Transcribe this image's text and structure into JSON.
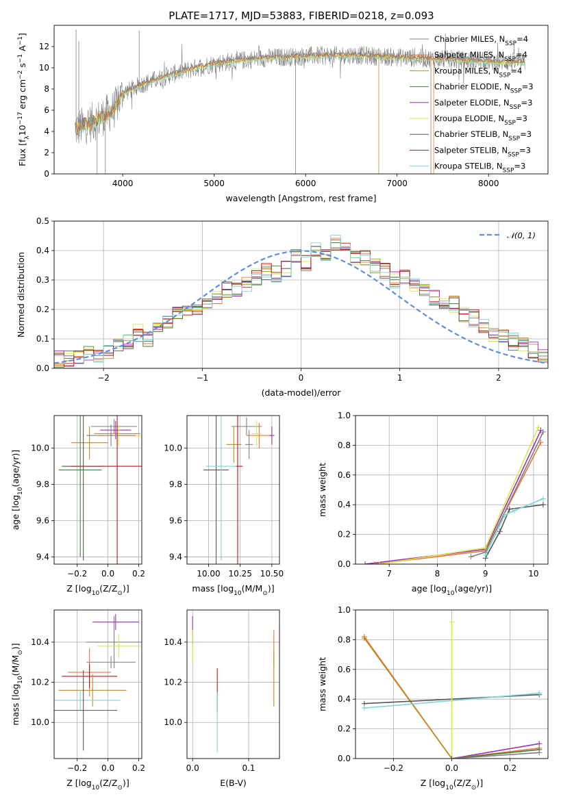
{
  "title": "PLATE=1717, MJD=53883, FIBERID=0218, z=0.093",
  "colors": {
    "series": [
      "#7f7f7f",
      "#e8773a",
      "#b98d1f",
      "#3f7f3f",
      "#9b2fb5",
      "#d9e64a",
      "#555555",
      "#b0171f",
      "#7fd4d6"
    ],
    "model_gray": "#808080",
    "normal_curve": "#5b8fdd",
    "gaussian": "#5b8fdd"
  },
  "legend_items": [
    {
      "prefix": "Chabrier MILES, N",
      "sub": "SSP",
      "suffix": "=4"
    },
    {
      "prefix": "Salpeter MILES, N",
      "sub": "SSP",
      "suffix": "=4"
    },
    {
      "prefix": "Kroupa MILES, N",
      "sub": "SSP",
      "suffix": "=4"
    },
    {
      "prefix": "Chabrier ELODIE, N",
      "sub": "SSP",
      "suffix": "=3"
    },
    {
      "prefix": "Salpeter ELODIE, N",
      "sub": "SSP",
      "suffix": "=3"
    },
    {
      "prefix": "Kroupa ELODIE, N",
      "sub": "SSP",
      "suffix": "=3"
    },
    {
      "prefix": "Chabrier STELIB, N",
      "sub": "SSP",
      "suffix": "=3"
    },
    {
      "prefix": "Salpeter STELIB, N",
      "sub": "SSP",
      "suffix": "=3"
    },
    {
      "prefix": "Kroupa STELIB, N",
      "sub": "SSP",
      "suffix": "=3"
    }
  ],
  "chart_data": [
    {
      "id": "spectrum",
      "type": "line",
      "title": "PLATE=1717, MJD=53883, FIBERID=0218, z=0.093",
      "xlabel": "wavelength [Angstrom, rest frame]",
      "ylabel_parts": [
        "Flux [f",
        "λ",
        "10",
        "−17",
        " erg cm",
        "−2",
        " s",
        "−1",
        " A",
        "−1",
        "]"
      ],
      "xlim": [
        3250,
        8650
      ],
      "ylim": [
        0,
        14
      ],
      "xticks": [
        4000,
        5000,
        6000,
        7000,
        8000
      ],
      "yticks": [
        0,
        2,
        4,
        6,
        8,
        10,
        12
      ],
      "continuum_x": [
        3480,
        3700,
        3900,
        4000,
        4200,
        4500,
        4800,
        5000,
        5500,
        6000,
        6500,
        7000,
        7500,
        8000,
        8400
      ],
      "continuum_y": [
        4.2,
        5.0,
        6.0,
        7.6,
        8.4,
        9.3,
        10.0,
        10.4,
        10.9,
        11.1,
        11.2,
        11.0,
        10.8,
        10.6,
        10.5
      ],
      "grid": false
    },
    {
      "id": "residuals",
      "type": "line",
      "xlabel": "(data-model)/error",
      "ylabel": "Normed distribution",
      "xlim": [
        -2.5,
        2.5
      ],
      "ylim": [
        0,
        0.5
      ],
      "xticks": [
        -2,
        -1,
        0,
        1,
        2
      ],
      "yticks": [
        0.0,
        0.1,
        0.2,
        0.3,
        0.4,
        0.5
      ],
      "legend": "𝒩(0, 1)",
      "bin_edges_start": -2.5,
      "bin_width": 0.1,
      "histogram_profile": [
        0.03,
        0.03,
        0.04,
        0.05,
        0.05,
        0.06,
        0.07,
        0.09,
        0.12,
        0.1,
        0.14,
        0.16,
        0.18,
        0.2,
        0.19,
        0.22,
        0.24,
        0.27,
        0.26,
        0.29,
        0.31,
        0.33,
        0.32,
        0.34,
        0.38,
        0.36,
        0.4,
        0.39,
        0.43,
        0.41,
        0.38,
        0.37,
        0.35,
        0.33,
        0.3,
        0.31,
        0.28,
        0.27,
        0.24,
        0.22,
        0.22,
        0.18,
        0.17,
        0.15,
        0.12,
        0.11,
        0.09,
        0.08,
        0.06,
        0.05
      ],
      "grid": true
    },
    {
      "id": "age-vs-Z",
      "type": "scatter",
      "xlabel_parts": [
        "Z [log",
        "10",
        "(Z/Z",
        "⊙",
        ")]"
      ],
      "ylabel_parts": [
        "age  [log",
        "10",
        "(age/yr)]"
      ],
      "xlim": [
        -0.35,
        0.22
      ],
      "ylim": [
        9.36,
        10.18
      ],
      "xticks": [
        -0.2,
        0.0,
        0.2
      ],
      "xtick_labels": [
        "−0.2",
        "0.0",
        "0.2"
      ],
      "yticks": [
        9.4,
        9.6,
        9.8,
        10.0
      ],
      "points": [
        {
          "x": 0.04,
          "y": 10.12,
          "xerr": 0.15,
          "yerr": 0.04,
          "c": 0
        },
        {
          "x": 0.06,
          "y": 10.08,
          "xerr": 0.15,
          "yerr": 0.06,
          "c": 1
        },
        {
          "x": 0.05,
          "y": 10.1,
          "xerr": 0.1,
          "yerr": 0.05,
          "c": 4
        },
        {
          "x": 0.07,
          "y": 10.07,
          "xerr": 0.14,
          "yerr": 0.06,
          "c": 5
        },
        {
          "x": -0.12,
          "y": 10.03,
          "xerr": 0.12,
          "yerr": 0.09,
          "c": 2
        },
        {
          "x": -0.16,
          "y": 9.9,
          "xerr": 0.14,
          "yerr": 0.52,
          "c": 6
        },
        {
          "x": 0.06,
          "y": 9.9,
          "xerr": 0.3,
          "yerr": 0.55,
          "c": 7
        },
        {
          "x": -0.18,
          "y": 9.88,
          "xerr": 0.14,
          "yerr": 0.48,
          "c": 3
        },
        {
          "x": 0.02,
          "y": 10.07,
          "xerr": 0.16,
          "yerr": 0.06,
          "c": 0
        }
      ],
      "grid": true
    },
    {
      "id": "age-vs-mass",
      "type": "scatter",
      "xlabel_parts": [
        "mass [log",
        "10",
        "(M/M",
        "⊙",
        ")]"
      ],
      "xlim": [
        9.83,
        10.56
      ],
      "ylim": [
        9.36,
        10.18
      ],
      "xticks": [
        10.0,
        10.25,
        10.5
      ],
      "xtick_labels": [
        "10.00",
        "10.25",
        "10.50"
      ],
      "yticks": [
        9.4,
        9.6,
        9.8,
        10.0
      ],
      "points": [
        {
          "x": 10.3,
          "y": 10.12,
          "xerr": 0.12,
          "yerr": 0.05,
          "c": 0
        },
        {
          "x": 10.4,
          "y": 10.07,
          "xerr": 0.1,
          "yerr": 0.07,
          "c": 1
        },
        {
          "x": 10.5,
          "y": 10.07,
          "xerr": 0.02,
          "yerr": 0.05,
          "c": 4
        },
        {
          "x": 10.38,
          "y": 10.08,
          "xerr": 0.04,
          "yerr": 0.07,
          "c": 5
        },
        {
          "x": 10.2,
          "y": 10.02,
          "xerr": 0.06,
          "yerr": 0.1,
          "c": 2
        },
        {
          "x": 10.06,
          "y": 9.88,
          "xerr": 0.1,
          "yerr": 0.52,
          "c": 6
        },
        {
          "x": 10.23,
          "y": 9.9,
          "xerr": 0.04,
          "yerr": 0.55,
          "c": 7
        },
        {
          "x": 10.1,
          "y": 9.9,
          "xerr": 0.12,
          "yerr": 0.52,
          "c": 8
        },
        {
          "x": 10.32,
          "y": 10.02,
          "xerr": 0.03,
          "yerr": 0.08,
          "c": 0
        }
      ],
      "grid": true
    },
    {
      "id": "massweight-vs-age",
      "type": "line",
      "xlabel_parts": [
        "age  [log",
        "10",
        "(age/yr)]"
      ],
      "ylabel": "mass weight",
      "xlim": [
        6.3,
        10.3
      ],
      "ylim": [
        0,
        1.0
      ],
      "xticks": [
        7,
        8,
        9,
        10
      ],
      "yticks": [
        0.0,
        0.2,
        0.4,
        0.6,
        0.8,
        1.0
      ],
      "series": [
        {
          "c": 4,
          "x": [
            6.5,
            9.0,
            10.15
          ],
          "y": [
            0.0,
            0.1,
            0.9
          ]
        },
        {
          "c": 1,
          "x": [
            6.7,
            9.0,
            10.15
          ],
          "y": [
            0.0,
            0.09,
            0.82
          ]
        },
        {
          "c": 5,
          "x": [
            6.8,
            9.0,
            10.1
          ],
          "y": [
            0.0,
            0.11,
            0.92
          ]
        },
        {
          "c": 0,
          "x": [
            8.7,
            9.0,
            10.2
          ],
          "y": [
            0.05,
            0.08,
            0.89
          ]
        },
        {
          "c": 6,
          "x": [
            9.0,
            9.3,
            9.5,
            10.2
          ],
          "y": [
            0.04,
            0.22,
            0.37,
            0.4
          ]
        },
        {
          "c": 8,
          "x": [
            9.0,
            9.4,
            9.6,
            10.2
          ],
          "y": [
            0.06,
            0.33,
            0.36,
            0.44
          ]
        }
      ],
      "grid": true
    },
    {
      "id": "mass-vs-Z",
      "type": "scatter",
      "xlabel_parts": [
        "Z [log",
        "10",
        "(Z/Z",
        "⊙",
        ")]"
      ],
      "ylabel_parts": [
        "mass [log",
        "10",
        "(M/M",
        "⊙",
        ")]"
      ],
      "xlim": [
        -0.35,
        0.22
      ],
      "ylim": [
        9.82,
        10.56
      ],
      "xticks": [
        -0.2,
        0.0,
        0.2
      ],
      "xtick_labels": [
        "−0.2",
        "0.0",
        "0.2"
      ],
      "yticks": [
        10.0,
        10.2,
        10.4
      ],
      "points": [
        {
          "x": 0.05,
          "y": 10.5,
          "xerr": 0.15,
          "yerr": 0.04,
          "c": 4
        },
        {
          "x": 0.04,
          "y": 10.4,
          "xerr": 0.18,
          "yerr": 0.13,
          "c": 0
        },
        {
          "x": 0.07,
          "y": 10.38,
          "xerr": 0.14,
          "yerr": 0.06,
          "c": 5
        },
        {
          "x": 0.02,
          "y": 10.3,
          "xerr": 0.16,
          "yerr": 0.03,
          "c": 0
        },
        {
          "x": -0.12,
          "y": 10.25,
          "xerr": 0.14,
          "yerr": 0.12,
          "c": 1
        },
        {
          "x": -0.12,
          "y": 10.23,
          "xerr": 0.18,
          "yerr": 0.06,
          "c": 7
        },
        {
          "x": -0.1,
          "y": 10.16,
          "xerr": 0.22,
          "yerr": 0.08,
          "c": 2
        },
        {
          "x": -0.18,
          "y": 10.11,
          "xerr": 0.26,
          "yerr": 0.05,
          "c": 8
        },
        {
          "x": -0.16,
          "y": 10.06,
          "xerr": 0.22,
          "yerr": 0.2,
          "c": 6
        }
      ],
      "grid": true
    },
    {
      "id": "mass-vs-EBV",
      "type": "scatter",
      "xlabel": "E(B-V)",
      "xlim": [
        -0.01,
        0.155
      ],
      "ylim": [
        9.82,
        10.56
      ],
      "xticks": [
        0.0,
        0.1
      ],
      "xtick_labels": [
        "0.0",
        "0.1"
      ],
      "yticks": [
        10.0,
        10.2,
        10.4
      ],
      "points": [
        {
          "x": 0.0,
          "y": 10.46,
          "xerr": 0,
          "yerr": 0.07,
          "c": 4
        },
        {
          "x": 0.0,
          "y": 10.38,
          "xerr": 0,
          "yerr": 0.08,
          "c": 5
        },
        {
          "x": 0.044,
          "y": 10.16,
          "xerr": 0,
          "yerr": 0.11,
          "c": 7
        },
        {
          "x": 0.044,
          "y": 10.0,
          "xerr": 0,
          "yerr": 0.15,
          "c": 8
        },
        {
          "x": 0.145,
          "y": 10.37,
          "xerr": 0,
          "yerr": 0.09,
          "c": 1
        },
        {
          "x": 0.145,
          "y": 10.22,
          "xerr": 0,
          "yerr": 0.14,
          "c": 2
        }
      ],
      "grid": true
    },
    {
      "id": "massweight-vs-Z",
      "type": "line",
      "xlabel_parts": [
        "Z [log",
        "10",
        "(Z/Z",
        "⊙",
        ")]"
      ],
      "ylabel": "mass weight",
      "xlim": [
        -0.33,
        0.33
      ],
      "ylim": [
        0,
        1.0
      ],
      "xticks": [
        -0.2,
        0.0,
        0.2
      ],
      "xtick_labels": [
        "−0.2",
        "0.0",
        "0.2"
      ],
      "yticks": [
        0.0,
        0.2,
        0.4,
        0.6,
        0.8,
        1.0
      ],
      "series": [
        {
          "c": 1,
          "x": [
            -0.3,
            0.0
          ],
          "y": [
            0.82,
            0.0
          ]
        },
        {
          "c": 2,
          "x": [
            -0.3,
            0.0
          ],
          "y": [
            0.81,
            0.0
          ]
        },
        {
          "c": 6,
          "x": [
            -0.3,
            0.0,
            0.3
          ],
          "y": [
            0.37,
            0.4,
            0.43
          ]
        },
        {
          "c": 8,
          "x": [
            -0.3,
            0.0,
            0.3
          ],
          "y": [
            0.34,
            0.39,
            0.44
          ]
        },
        {
          "c": 5,
          "x": [
            0.0,
            0.0
          ],
          "y": [
            0.0,
            0.92
          ]
        },
        {
          "c": 4,
          "x": [
            0.0,
            0.3
          ],
          "y": [
            0.0,
            0.1
          ]
        },
        {
          "c": 1,
          "x": [
            0.0,
            0.3
          ],
          "y": [
            0.0,
            0.07
          ]
        },
        {
          "c": 3,
          "x": [
            0.0,
            0.3
          ],
          "y": [
            0.0,
            0.06
          ]
        },
        {
          "c": 0,
          "x": [
            0.0,
            0.3
          ],
          "y": [
            0.0,
            0.04
          ]
        }
      ],
      "grid": true
    }
  ]
}
